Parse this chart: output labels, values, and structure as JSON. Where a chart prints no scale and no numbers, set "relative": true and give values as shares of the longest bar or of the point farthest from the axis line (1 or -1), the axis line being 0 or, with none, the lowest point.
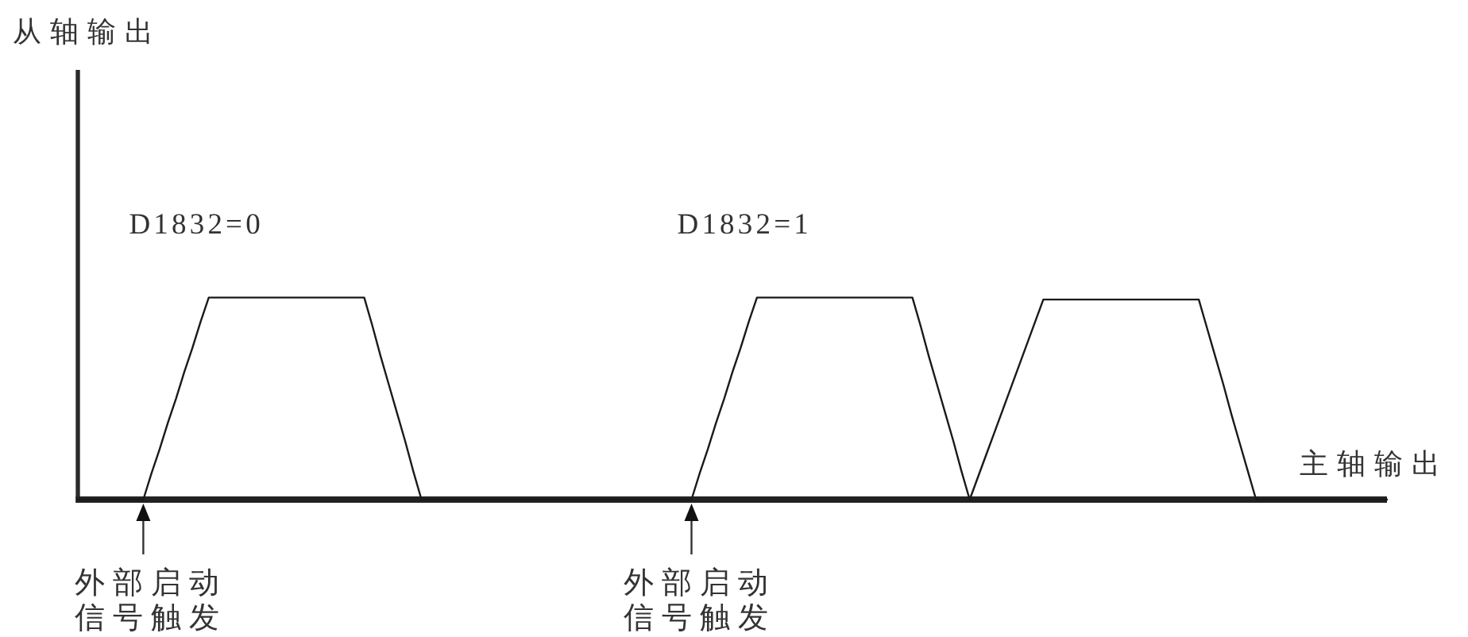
{
  "chart_data": {
    "type": "line",
    "relative": true,
    "xlabel": "主轴输出",
    "annotations": [
      "从轴输出",
      "D1832=0",
      "D1832=1",
      "外部启动信号触发",
      "外部启动信号触发"
    ],
    "categories": [
      null,
      null,
      null,
      null,
      null,
      null,
      null,
      null,
      null,
      null,
      null,
      null,
      null,
      null,
      null,
      null,
      null,
      null,
      null,
      null,
      null,
      null,
      null,
      null,
      null,
      null,
      null,
      null,
      null,
      null,
      null,
      null,
      null,
      null,
      null,
      null,
      null,
      null,
      null,
      null,
      null,
      null,
      null,
      null,
      null,
      null,
      null,
      null,
      null,
      null,
      null,
      null,
      null,
      null,
      null,
      null,
      null,
      null,
      null,
      null,
      null,
      null,
      null,
      null,
      null,
      null,
      null,
      null,
      null,
      null,
      null,
      null,
      null,
      null,
      null,
      null,
      null,
      null,
      null,
      null,
      null,
      null,
      null,
      null,
      null,
      null,
      null,
      null,
      null,
      null,
      null,
      null,
      null,
      null,
      null,
      null,
      null,
      null,
      null,
      null,
      null,
      null,
      null,
      null,
      null,
      null,
      null,
      null,
      null,
      null,
      null,
      null,
      null,
      null,
      null,
      null,
      null,
      null,
      null,
      null,
      null,
      null,
      null,
      null,
      null,
      null,
      null,
      null,
      null,
      null,
      null,
      null,
      null,
      null,
      null,
      null,
      null,
      null,
      null,
      null,
      null,
      null,
      null,
      null,
      null,
      null,
      null,
      null,
      null,
      null,
      null,
      null,
      null,
      null,
      null,
      null,
      null,
      null,
      null,
      null,
      null
    ],
    "series": [
      {
        "color": "#1a1a1a",
        "values": [
          0,
          0,
          0,
          0,
          0,
          0,
          0,
          0,
          0,
          0.13,
          0.25,
          0.38,
          0.5,
          0.63,
          0.75,
          0.88,
          1,
          1,
          1,
          1,
          1,
          1,
          1,
          1,
          1,
          1,
          1,
          1,
          1,
          1,
          1,
          1,
          1,
          1,
          1,
          1,
          0.86,
          0.71,
          0.57,
          0.43,
          0.29,
          0.14,
          0,
          0,
          0,
          0,
          0,
          0,
          0,
          0,
          0,
          0,
          0,
          0,
          0,
          0,
          0,
          0,
          0,
          0,
          0,
          0,
          0,
          0,
          0,
          0,
          0,
          0,
          0,
          0,
          0,
          0,
          0,
          0,
          0,
          0,
          0.13,
          0.25,
          0.38,
          0.5,
          0.63,
          0.75,
          0.88,
          1,
          1,
          1,
          1,
          1,
          1,
          1,
          1,
          1,
          1,
          1,
          1,
          1,
          1,
          1,
          1,
          1,
          1,
          1,
          1,
          0.86,
          0.71,
          0.57,
          0.43,
          0.29,
          0.14,
          0,
          0.11,
          0.22,
          0.33,
          0.44,
          0.55,
          0.66,
          0.77,
          0.88,
          0.99,
          0.99,
          0.99,
          0.99,
          0.99,
          0.99,
          0.99,
          0.99,
          0.99,
          0.99,
          0.99,
          0.99,
          0.99,
          0.99,
          0.99,
          0.99,
          0.99,
          0.99,
          0.99,
          0.99,
          0.85,
          0.71,
          0.57,
          0.42,
          0.28,
          0.14,
          0,
          0,
          0,
          0,
          0,
          0,
          0,
          0,
          0,
          0,
          0,
          0,
          0,
          0,
          0,
          0,
          0
        ]
      }
    ]
  }
}
